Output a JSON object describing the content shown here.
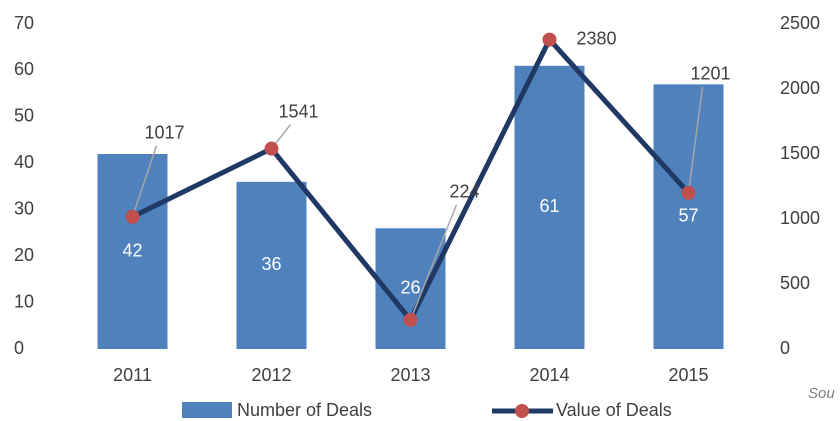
{
  "chart_data": {
    "type": "bar_line",
    "categories": [
      "2011",
      "2012",
      "2013",
      "2014",
      "2015"
    ],
    "series": [
      {
        "name": "Number of Deals",
        "type": "bar",
        "color": "#4f81bd",
        "values": [
          42,
          36,
          26,
          61,
          57
        ]
      },
      {
        "name": "Value of Deals",
        "type": "line",
        "axis": "y2",
        "color": "#1f3864",
        "marker_color": "#c0504d",
        "values": [
          1017,
          1541,
          224,
          2380,
          1201
        ]
      }
    ],
    "ylim": [
      0,
      70
    ],
    "yticks": [
      0,
      10,
      20,
      30,
      40,
      50,
      60,
      70
    ],
    "y2lim": [
      0,
      2500
    ],
    "y2ticks": [
      0,
      500,
      1000,
      1500,
      2000,
      2500
    ],
    "legend": "bottom",
    "source_note": "Sou"
  }
}
